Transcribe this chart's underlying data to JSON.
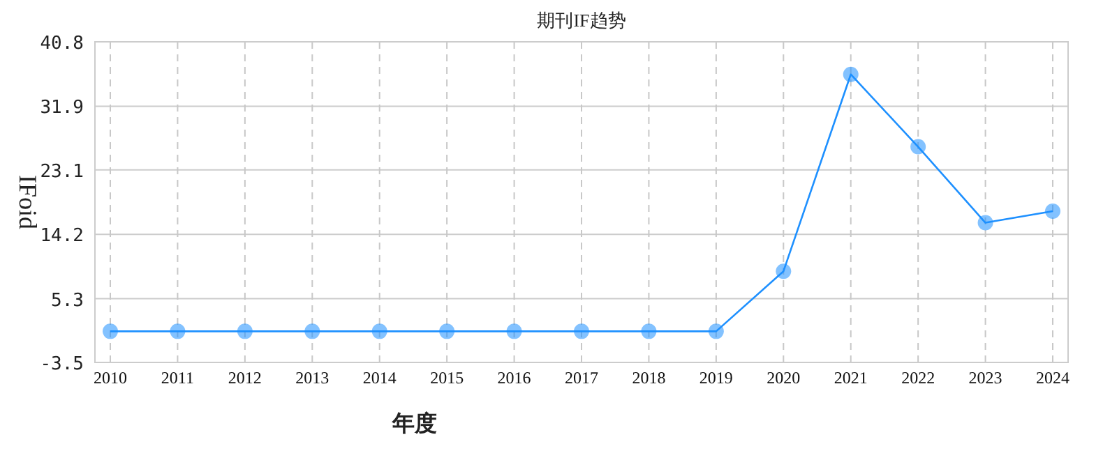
{
  "chart_data": {
    "type": "line",
    "title": "期刊IF趋势",
    "xlabel": "年度",
    "ylabel": "IFoid",
    "categories": [
      "2010",
      "2011",
      "2012",
      "2013",
      "2014",
      "2015",
      "2016",
      "2017",
      "2018",
      "2019",
      "2020",
      "2021",
      "2022",
      "2023",
      "2024"
    ],
    "series": [
      {
        "color": "#1e90ff",
        "values": [
          0.8,
          0.8,
          0.8,
          0.8,
          0.8,
          0.8,
          0.8,
          0.8,
          0.8,
          0.8,
          9.1,
          36.3,
          26.3,
          15.8,
          17.4
        ]
      }
    ],
    "ylim": [
      -3.5,
      40.8
    ],
    "yticks": [
      -3.5,
      5.3,
      14.2,
      23.1,
      31.9,
      40.8
    ],
    "grid": true,
    "marker": "circle"
  }
}
